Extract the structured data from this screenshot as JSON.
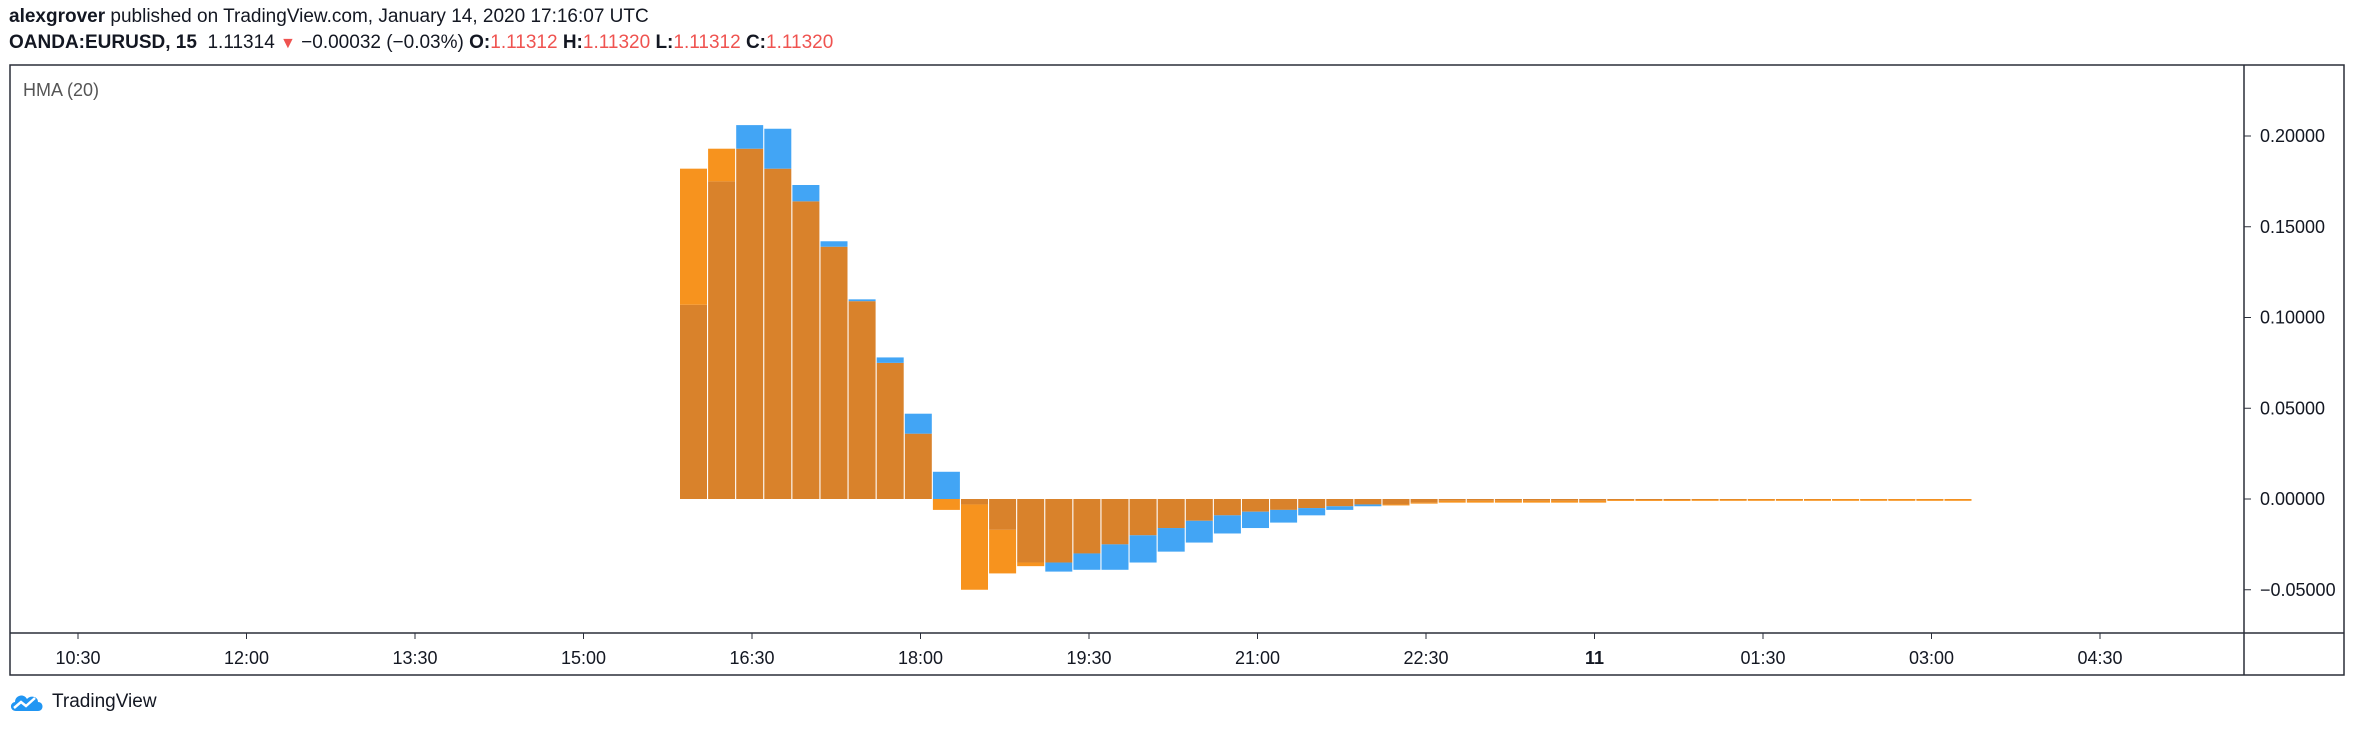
{
  "header": {
    "author": "alexgrover",
    "published_text": "published on TradingView.com, January 14, 2020 17:16:07 UTC",
    "symbol": "OANDA:EURUSD, 15",
    "last_price": "1.11314",
    "change_arrow": "▼",
    "change": "−0.00032 (−0.03%)",
    "open_label": "O:",
    "open": "1.11312",
    "high_label": "H:",
    "high": "1.11320",
    "low_label": "L:",
    "low": "1.11312",
    "close_label": "C:",
    "close": "1.11320"
  },
  "footer": {
    "brand": "TradingView",
    "logo_icon": "tradingview-cloud-icon"
  },
  "colors": {
    "blue": "#42a5f5",
    "orange": "#f7931e",
    "overlap": "#d9822b",
    "text_red": "#ef5350"
  },
  "chart_data": {
    "type": "bar",
    "title": "HMA (20)",
    "xlabel": "",
    "ylabel": "",
    "ylim": [
      -0.075,
      0.24
    ],
    "y_ticks": [
      0.2,
      0.15,
      0.1,
      0.05,
      0.0,
      -0.05
    ],
    "y_tick_labels": [
      "0.20000",
      "0.15000",
      "0.10000",
      "0.05000",
      "0.00000",
      "−0.05000"
    ],
    "x_tick_labels": [
      "10:30",
      "12:00",
      "13:30",
      "15:00",
      "16:30",
      "18:00",
      "19:30",
      "21:00",
      "22:30",
      "11",
      "01:30",
      "03:00",
      "04:30"
    ],
    "bar_interval": "15m",
    "first_bar_time": "15:45",
    "grid": false,
    "series": [
      {
        "values": [
          0.107,
          0.175,
          0.206,
          0.204,
          0.173,
          0.142,
          0.11,
          0.078,
          0.047,
          0.015,
          -0.003,
          -0.017,
          -0.035,
          -0.04,
          -0.039,
          -0.039,
          -0.035,
          -0.029,
          -0.024,
          -0.019,
          -0.016,
          -0.013,
          -0.009,
          -0.006,
          -0.004,
          -0.003,
          -0.002,
          -0.001,
          -0.001,
          -0.001,
          -0.001,
          -0.001,
          -0.001,
          -0.0005,
          -0.0005,
          -0.0005,
          -0.0003,
          -0.0003,
          -0.0002,
          -0.0002,
          -0.0002,
          -0.0001,
          -0.0001,
          -0.0001,
          -0.0001,
          -0.0001
        ]
      },
      {
        "values": [
          0.182,
          0.193,
          0.193,
          0.182,
          0.164,
          0.139,
          0.109,
          0.075,
          0.036,
          -0.006,
          -0.05,
          -0.041,
          -0.037,
          -0.035,
          -0.03,
          -0.025,
          -0.02,
          -0.016,
          -0.012,
          -0.009,
          -0.007,
          -0.006,
          -0.005,
          -0.004,
          -0.003,
          -0.003,
          -0.002,
          -0.002,
          -0.002,
          -0.002,
          -0.002,
          -0.002,
          -0.002,
          -0.001,
          -0.001,
          -0.001,
          -0.001,
          -0.001,
          -0.001,
          -0.001,
          -0.001,
          -0.001,
          -0.001,
          -0.001,
          -0.001,
          -0.001
        ]
      }
    ]
  }
}
